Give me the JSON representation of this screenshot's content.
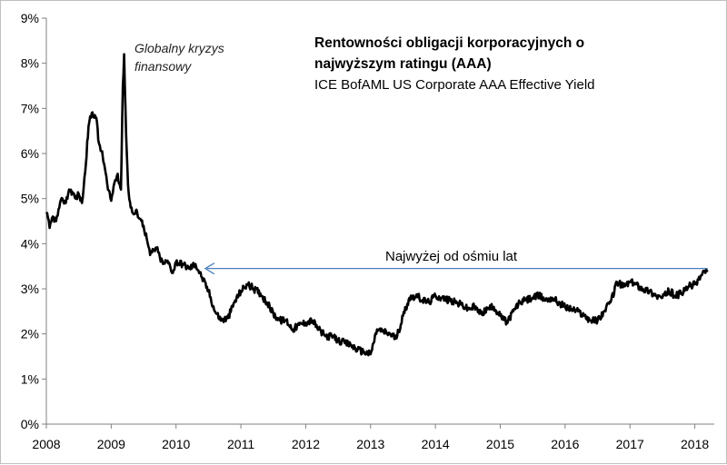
{
  "chart_data": {
    "type": "line",
    "title_line1": "Rentowności obligacji korporacyjnych o",
    "title_line2": "najwyższym ratingu (AAA)",
    "subtitle": "ICE BofAML US Corporate AAA Effective Yield",
    "xlabel": "",
    "ylabel": "",
    "xlim": [
      2008,
      2018.3
    ],
    "ylim": [
      0,
      9
    ],
    "x_ticks": [
      {
        "value": 2008,
        "label": "2008"
      },
      {
        "value": 2009,
        "label": "2009"
      },
      {
        "value": 2010,
        "label": "2010"
      },
      {
        "value": 2011,
        "label": "2011"
      },
      {
        "value": 2012,
        "label": "2012"
      },
      {
        "value": 2013,
        "label": "2013"
      },
      {
        "value": 2014,
        "label": "2014"
      },
      {
        "value": 2015,
        "label": "2015"
      },
      {
        "value": 2016,
        "label": "2016"
      },
      {
        "value": 2017,
        "label": "2017"
      },
      {
        "value": 2018,
        "label": "2018"
      }
    ],
    "y_ticks": [
      {
        "value": 0,
        "label": "0%"
      },
      {
        "value": 1,
        "label": "1%"
      },
      {
        "value": 2,
        "label": "2%"
      },
      {
        "value": 3,
        "label": "3%"
      },
      {
        "value": 4,
        "label": "4%"
      },
      {
        "value": 5,
        "label": "5%"
      },
      {
        "value": 6,
        "label": "6%"
      },
      {
        "value": 7,
        "label": "7%"
      },
      {
        "value": 8,
        "label": "8%"
      },
      {
        "value": 9,
        "label": "9%"
      }
    ],
    "series": [
      {
        "name": "ICE BofAML US Corporate AAA Effective Yield",
        "color": "#000000",
        "x": [
          2008.0,
          2008.05,
          2008.1,
          2008.15,
          2008.2,
          2008.25,
          2008.3,
          2008.35,
          2008.4,
          2008.45,
          2008.5,
          2008.55,
          2008.6,
          2008.65,
          2008.7,
          2008.75,
          2008.78,
          2008.8,
          2008.85,
          2008.9,
          2008.95,
          2009.0,
          2009.05,
          2009.1,
          2009.15,
          2009.18,
          2009.2,
          2009.23,
          2009.26,
          2009.3,
          2009.35,
          2009.4,
          2009.45,
          2009.5,
          2009.55,
          2009.6,
          2009.65,
          2009.7,
          2009.75,
          2009.8,
          2009.85,
          2009.9,
          2009.95,
          2010.0,
          2010.1,
          2010.2,
          2010.3,
          2010.4,
          2010.5,
          2010.6,
          2010.7,
          2010.8,
          2010.9,
          2011.0,
          2011.1,
          2011.2,
          2011.3,
          2011.4,
          2011.5,
          2011.6,
          2011.7,
          2011.8,
          2011.9,
          2012.0,
          2012.1,
          2012.2,
          2012.3,
          2012.4,
          2012.5,
          2012.6,
          2012.7,
          2012.8,
          2012.9,
          2013.0,
          2013.1,
          2013.2,
          2013.3,
          2013.4,
          2013.5,
          2013.6,
          2013.7,
          2013.8,
          2013.9,
          2014.0,
          2014.1,
          2014.2,
          2014.3,
          2014.4,
          2014.5,
          2014.6,
          2014.7,
          2014.8,
          2014.9,
          2015.0,
          2015.1,
          2015.2,
          2015.3,
          2015.4,
          2015.5,
          2015.6,
          2015.7,
          2015.8,
          2015.9,
          2016.0,
          2016.1,
          2016.2,
          2016.3,
          2016.4,
          2016.5,
          2016.6,
          2016.7,
          2016.8,
          2016.9,
          2017.0,
          2017.1,
          2017.2,
          2017.3,
          2017.4,
          2017.5,
          2017.6,
          2017.7,
          2017.8,
          2017.9,
          2018.0,
          2018.1,
          2018.15,
          2018.2
        ],
        "values": [
          4.7,
          4.35,
          4.6,
          4.5,
          4.8,
          5.0,
          4.9,
          5.2,
          5.15,
          5.0,
          5.1,
          4.9,
          5.6,
          6.6,
          6.9,
          6.85,
          6.7,
          6.3,
          6.05,
          5.7,
          5.2,
          4.95,
          5.35,
          5.55,
          5.2,
          7.5,
          8.2,
          6.4,
          5.3,
          4.8,
          4.65,
          4.7,
          4.55,
          4.4,
          4.1,
          3.75,
          3.85,
          3.9,
          3.7,
          3.55,
          3.6,
          3.55,
          3.35,
          3.6,
          3.55,
          3.45,
          3.55,
          3.25,
          2.95,
          2.5,
          2.3,
          2.35,
          2.7,
          2.95,
          3.1,
          3.0,
          2.9,
          2.7,
          2.45,
          2.3,
          2.3,
          2.1,
          2.2,
          2.25,
          2.3,
          2.1,
          1.95,
          1.95,
          1.85,
          1.8,
          1.75,
          1.65,
          1.6,
          1.55,
          2.1,
          2.05,
          2.0,
          1.9,
          2.4,
          2.8,
          2.85,
          2.75,
          2.7,
          2.85,
          2.8,
          2.75,
          2.7,
          2.65,
          2.55,
          2.6,
          2.45,
          2.55,
          2.6,
          2.4,
          2.25,
          2.5,
          2.7,
          2.75,
          2.8,
          2.85,
          2.75,
          2.8,
          2.7,
          2.6,
          2.55,
          2.5,
          2.4,
          2.3,
          2.3,
          2.5,
          2.7,
          3.15,
          3.05,
          3.15,
          3.1,
          3.0,
          2.95,
          2.85,
          2.8,
          2.95,
          2.85,
          2.9,
          3.05,
          3.1,
          3.3,
          3.4,
          3.38
        ]
      }
    ],
    "annotations": {
      "crisis_label_line1": "Globalny kryzys",
      "crisis_label_line2": "finansowy",
      "arrow_label": "Najwyżej od ośmiu lat",
      "arrow_level": 3.45,
      "arrow_x_start": 2010.45,
      "arrow_x_end": 2018.2,
      "arrow_color": "#4a7ebb"
    },
    "grid": false
  }
}
